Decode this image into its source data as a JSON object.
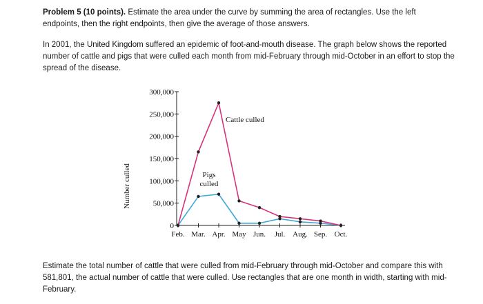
{
  "problem": {
    "heading": "Problem 5 (10 points).",
    "body": "Estimate the area under the curve by summing the area of rectangles.  Use the left endpoints, then the right endpoints, then give the average of those answers."
  },
  "intro": "In 2001, the United Kingdom suffered an epidemic of foot-and-mouth disease.  The graph below shows the reported number of cattle and pigs that were culled each month from mid-February through mid-October in an effort to stop the spread of the disease.",
  "question": "Estimate the total number of cattle that were culled from mid-February through mid-October and compare this with 581,801, the actual number of cattle that were culled.  Use rectangles that are one month in width, starting with mid-February.",
  "chart_data": {
    "type": "line",
    "ylabel": "Number culled",
    "xlabel": "",
    "categories": [
      "Feb.",
      "Mar.",
      "Apr.",
      "May",
      "Jun.",
      "Jul.",
      "Aug.",
      "Sep.",
      "Oct."
    ],
    "ylim": [
      0,
      300000
    ],
    "yticks": [
      0,
      50000,
      100000,
      150000,
      200000,
      250000,
      300000
    ],
    "ytick_labels": [
      "0",
      "50,000",
      "100,000",
      "150,000",
      "200,000",
      "250,000",
      "300,000"
    ],
    "series": [
      {
        "name": "Cattle culled",
        "color": "#d6337a",
        "values": [
          0,
          165000,
          275000,
          55000,
          40000,
          20000,
          15000,
          10000,
          0
        ]
      },
      {
        "name": "Pigs culled",
        "color": "#3fa9d8",
        "values": [
          0,
          65000,
          70000,
          5000,
          5000,
          15000,
          8000,
          5000,
          0
        ]
      }
    ]
  }
}
